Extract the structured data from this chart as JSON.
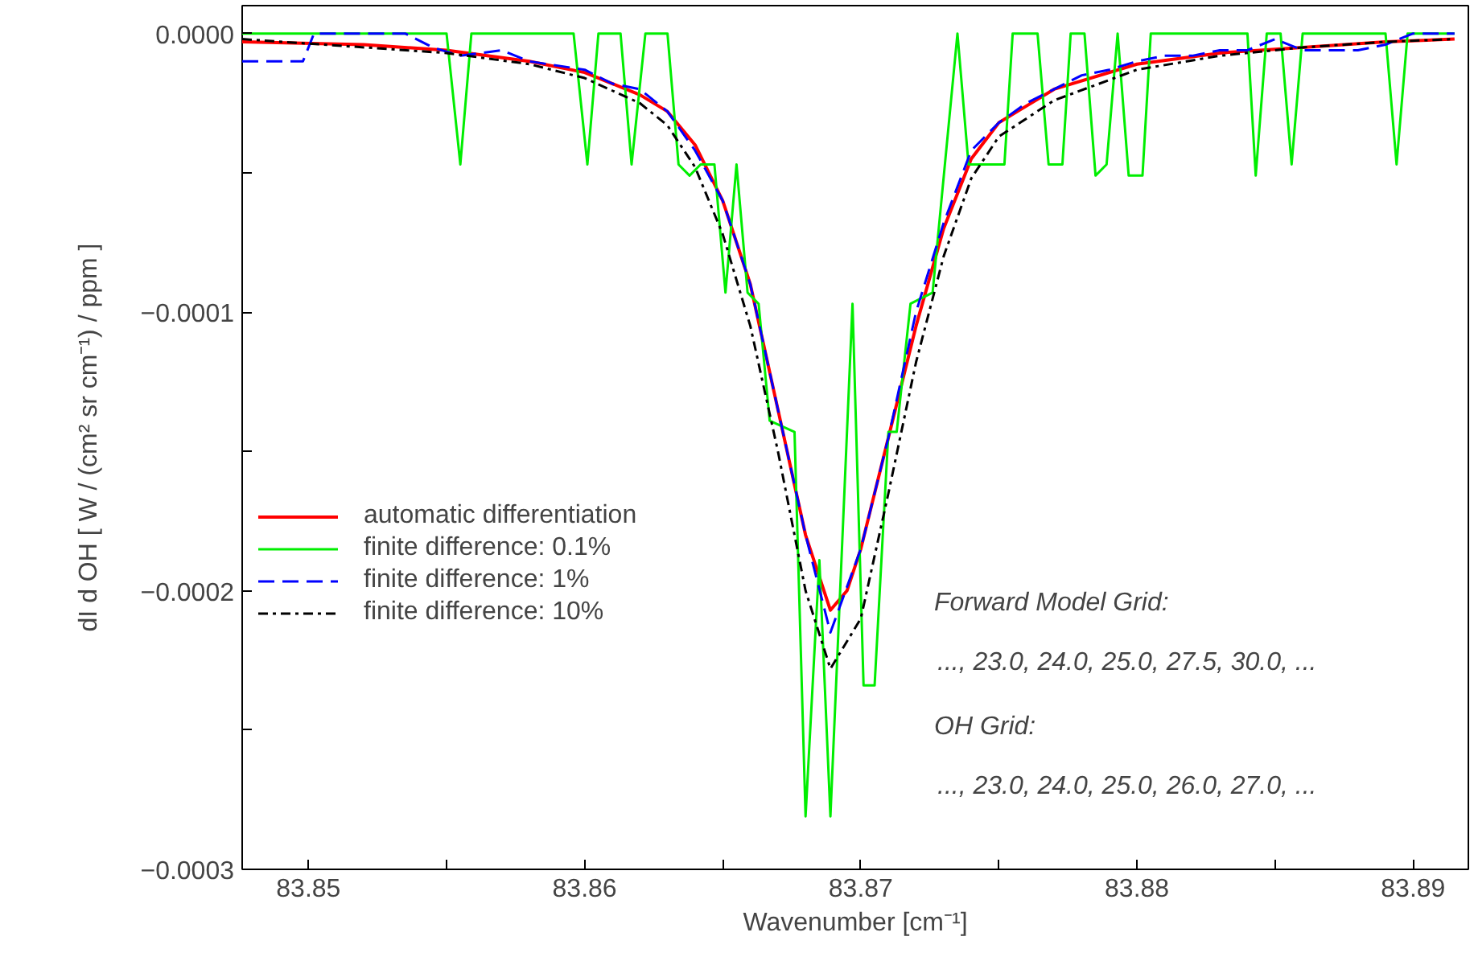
{
  "chart_data": {
    "type": "line",
    "xlabel": "Wavenumber [cm⁻¹]",
    "ylabel": "dI d OH [ W / (cm² sr cm⁻¹) / ppm ]",
    "xlim": [
      83.8476,
      83.892
    ],
    "ylim": [
      -0.0003,
      1e-05
    ],
    "xticks": [
      83.85,
      {
        "value": 83.855,
        "label": null
      },
      83.86,
      {
        "value": 83.865,
        "label": null
      },
      83.87,
      {
        "value": 83.875,
        "label": null
      },
      83.88,
      {
        "value": 83.885,
        "label": null
      },
      83.89
    ],
    "yticks": [
      {
        "value": -0.0003,
        "label": "−0.0003"
      },
      {
        "value": -0.00025,
        "label": null
      },
      {
        "value": -0.0002,
        "label": "−0.0002"
      },
      {
        "value": -0.00015,
        "label": null
      },
      {
        "value": -0.0001,
        "label": "−0.0001"
      },
      {
        "value": -5e-05,
        "label": null
      },
      {
        "value": 0,
        "label": "0.0000"
      }
    ],
    "grid": false,
    "legend": "bottom left",
    "marker": "none",
    "series": [
      {
        "name": "automatic differentiation",
        "color": "#ff0000",
        "line_style": "solid",
        "x": [
          83.8476,
          83.852,
          83.855,
          83.858,
          83.86,
          83.862,
          83.863,
          83.864,
          83.865,
          83.866,
          83.867,
          83.868,
          83.8689,
          83.8695,
          83.87,
          83.871,
          83.872,
          83.873,
          83.874,
          83.875,
          83.877,
          83.88,
          83.883,
          83.886,
          83.889,
          83.8915
        ],
        "values": [
          -3e-06,
          -4e-06,
          -6e-06,
          -1e-05,
          -1.4e-05,
          -2.2e-05,
          -2.8e-05,
          -4e-05,
          -6e-05,
          -9e-05,
          -0.000135,
          -0.00018,
          -0.000207,
          -0.0002,
          -0.000185,
          -0.000145,
          -0.000105,
          -7e-05,
          -4.5e-05,
          -3.2e-05,
          -2e-05,
          -1.1e-05,
          -7e-06,
          -5e-06,
          -3e-06,
          -2e-06
        ]
      },
      {
        "name": "finite difference: 0.1%",
        "color": "#00ee00",
        "line_style": "solid",
        "x": [
          83.8476,
          83.855,
          83.8555,
          83.8559,
          83.8596,
          83.8601,
          83.8605,
          83.8613,
          83.8617,
          83.8622,
          83.863,
          83.8634,
          83.8638,
          83.8642,
          83.8647,
          83.8651,
          83.8655,
          83.8659,
          83.8663,
          83.8667,
          83.8676,
          83.868,
          83.8685,
          83.8689,
          83.8697,
          83.8701,
          83.8705,
          83.871,
          83.8713,
          83.8718,
          83.8726,
          83.8735,
          83.8739,
          83.8752,
          83.8755,
          83.8764,
          83.8768,
          83.8773,
          83.8776,
          83.8781,
          83.8785,
          83.8789,
          83.8793,
          83.8797,
          83.8802,
          83.8805,
          83.884,
          83.8843,
          83.8847,
          83.8852,
          83.8856,
          83.886,
          83.889,
          83.8894,
          83.8898,
          83.8915
        ],
        "values": [
          0,
          0,
          -4.7e-05,
          0,
          0,
          -4.7e-05,
          0,
          0,
          -4.7e-05,
          0,
          0,
          -4.7e-05,
          -5.1e-05,
          -4.7e-05,
          -4.7e-05,
          -9.3e-05,
          -4.7e-05,
          -9.3e-05,
          -9.7e-05,
          -0.000139,
          -0.000143,
          -0.000281,
          -0.000189,
          -0.000281,
          -9.7e-05,
          -0.000234,
          -0.000234,
          -0.000143,
          -0.000143,
          -9.7e-05,
          -9.3e-05,
          0,
          -4.7e-05,
          -4.7e-05,
          0,
          0,
          -4.7e-05,
          -4.7e-05,
          0,
          0,
          -5.1e-05,
          -4.7e-05,
          0,
          -5.1e-05,
          -5.1e-05,
          0,
          0,
          -5.1e-05,
          0,
          0,
          -4.7e-05,
          0,
          0,
          -4.7e-05,
          0,
          0
        ]
      },
      {
        "name": "finite difference: 1%",
        "color": "#0000ff",
        "line_style": "dashed",
        "x": [
          83.8476,
          83.8498,
          83.8502,
          83.8535,
          83.8545,
          83.8555,
          83.857,
          83.858,
          83.86,
          83.861,
          83.862,
          83.863,
          83.864,
          83.865,
          83.866,
          83.867,
          83.868,
          83.8689,
          83.87,
          83.871,
          83.872,
          83.873,
          83.874,
          83.875,
          83.876,
          83.877,
          83.878,
          83.879,
          83.88,
          83.881,
          83.882,
          83.883,
          83.884,
          83.885,
          83.886,
          83.887,
          83.888,
          83.889,
          83.89,
          83.8915
        ],
        "values": [
          -1e-05,
          -1e-05,
          0,
          0,
          -5e-06,
          -8e-06,
          -6e-06,
          -1e-05,
          -1.3e-05,
          -1.8e-05,
          -2e-05,
          -2.8e-05,
          -4.2e-05,
          -6e-05,
          -9e-05,
          -0.000135,
          -0.00018,
          -0.000215,
          -0.000185,
          -0.000145,
          -0.0001,
          -6.8e-05,
          -4.2e-05,
          -3.2e-05,
          -2.5e-05,
          -2e-05,
          -1.5e-05,
          -1.3e-05,
          -1e-05,
          -8e-06,
          -8e-06,
          -6e-06,
          -6e-06,
          -2e-06,
          -6e-06,
          -6e-06,
          -6e-06,
          -4e-06,
          0,
          0
        ]
      },
      {
        "name": "finite difference: 10%",
        "color": "#000000",
        "line_style": "dashdot",
        "x": [
          83.8476,
          83.855,
          83.858,
          83.86,
          83.862,
          83.863,
          83.864,
          83.865,
          83.866,
          83.867,
          83.868,
          83.8689,
          83.87,
          83.871,
          83.872,
          83.873,
          83.874,
          83.875,
          83.877,
          83.88,
          83.883,
          83.886,
          83.889,
          83.8915
        ],
        "values": [
          -2e-06,
          -7e-06,
          -1.1e-05,
          -1.6e-05,
          -2.5e-05,
          -3.3e-05,
          -4.8e-05,
          -7.2e-05,
          -0.000105,
          -0.00015,
          -0.0002,
          -0.000228,
          -0.00021,
          -0.000165,
          -0.000118,
          -8e-05,
          -5.2e-05,
          -3.7e-05,
          -2.4e-05,
          -1.3e-05,
          -8e-06,
          -5e-06,
          -3e-06,
          -2e-06
        ]
      }
    ],
    "annotations": [
      "Forward Model Grid:",
      "..., 23.0, 24.0, 25.0, 27.5, 30.0, ...",
      "OH Grid:",
      "..., 23.0, 24.0, 25.0, 26.0, 27.0, ..."
    ]
  }
}
